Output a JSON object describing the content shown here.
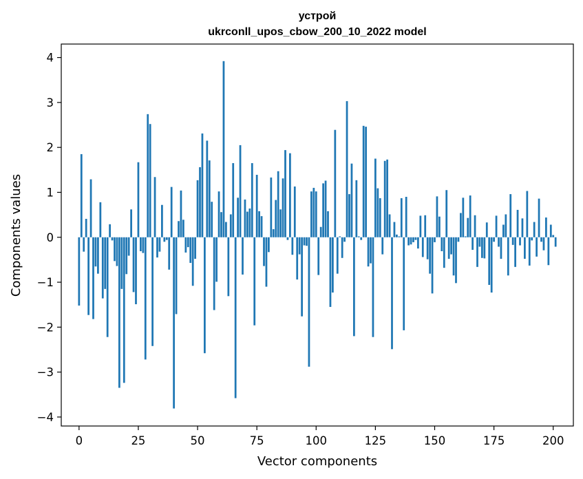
{
  "chart_data": {
    "type": "bar",
    "title_line1": "устрой",
    "title_line2": "ukrconll_upos_cbow_200_10_2022 model",
    "xlabel": "Vector components",
    "ylabel": "Components values",
    "xlim": [
      -7.5,
      208.5
    ],
    "ylim": [
      -4.2,
      4.3
    ],
    "xticks": [
      0,
      25,
      50,
      75,
      100,
      125,
      150,
      175,
      200
    ],
    "xtick_labels": [
      "0",
      "25",
      "50",
      "75",
      "100",
      "125",
      "150",
      "175",
      "200"
    ],
    "yticks": [
      -4,
      -3,
      -2,
      -1,
      0,
      1,
      2,
      3,
      4
    ],
    "ytick_labels": [
      "−4",
      "−3",
      "−2",
      "−1",
      "0",
      "1",
      "2",
      "3",
      "4"
    ],
    "grid": false,
    "bar_color": "#1f77b4",
    "values": [
      -1.52,
      1.85,
      -0.32,
      0.41,
      -1.73,
      1.29,
      -1.82,
      -0.65,
      -0.81,
      0.78,
      -1.36,
      -1.15,
      -2.22,
      0.29,
      -0.07,
      -0.53,
      -0.64,
      -3.35,
      -1.15,
      -3.24,
      -0.82,
      -0.41,
      0.62,
      -1.22,
      -1.49,
      1.67,
      -0.31,
      -0.35,
      -2.72,
      2.74,
      2.52,
      -2.42,
      1.34,
      -0.45,
      -0.32,
      0.72,
      -0.1,
      -0.06,
      -0.72,
      1.12,
      -3.81,
      -1.71,
      0.36,
      1.04,
      0.39,
      -0.34,
      -0.22,
      -0.57,
      -1.08,
      -0.48,
      1.27,
      1.56,
      2.31,
      -2.58,
      2.15,
      1.71,
      0.79,
      -1.62,
      -0.99,
      1.02,
      0.56,
      3.92,
      0.34,
      -1.31,
      0.51,
      1.65,
      -3.58,
      0.88,
      2.05,
      -0.83,
      0.84,
      0.57,
      0.64,
      1.65,
      -1.96,
      1.39,
      0.58,
      0.47,
      -0.64,
      -1.1,
      -0.33,
      1.33,
      0.18,
      0.83,
      1.47,
      0.62,
      1.31,
      1.94,
      -0.06,
      1.87,
      -0.39,
      1.13,
      -0.94,
      -0.38,
      -1.76,
      -0.18,
      -0.19,
      -2.88,
      1.02,
      1.1,
      1.02,
      -0.84,
      0.23,
      1.2,
      1.26,
      0.58,
      -1.55,
      -1.23,
      2.39,
      -0.81,
      0.02,
      -0.46,
      -0.1,
      3.03,
      0.96,
      1.64,
      -2.2,
      1.27,
      0.02,
      -0.06,
      2.48,
      2.46,
      -0.65,
      -0.58,
      -2.22,
      1.75,
      1.09,
      0.87,
      -0.38,
      1.7,
      1.73,
      0.51,
      -2.49,
      0.34,
      0.06,
      0.02,
      0.87,
      -2.07,
      0.9,
      -0.18,
      -0.16,
      -0.11,
      -0.06,
      -0.25,
      0.48,
      -0.44,
      0.49,
      -0.49,
      -0.81,
      -1.25,
      -0.11,
      0.91,
      0.46,
      -0.31,
      -0.68,
      1.05,
      -0.48,
      -0.38,
      -0.85,
      -1.02,
      -0.1,
      0.54,
      0.88,
      0.02,
      0.43,
      0.93,
      -0.28,
      0.49,
      -0.66,
      -0.21,
      -0.46,
      -0.47,
      0.33,
      -1.06,
      -1.23,
      -0.1,
      0.48,
      -0.21,
      -0.48,
      0.28,
      0.51,
      -0.85,
      0.96,
      -0.17,
      -0.66,
      0.61,
      -0.18,
      0.42,
      -0.48,
      1.03,
      -0.63,
      -0.07,
      0.34,
      -0.43,
      0.86,
      -0.1,
      -0.29,
      0.44,
      -0.62,
      0.28,
      0.05,
      -0.21
    ]
  }
}
